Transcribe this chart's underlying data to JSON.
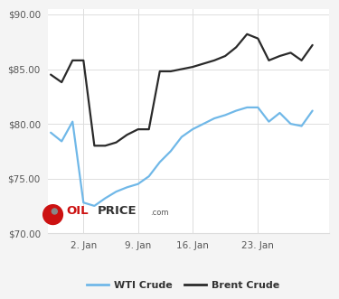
{
  "wti_x": [
    0,
    1,
    2,
    3,
    4,
    5,
    6,
    7,
    8,
    9,
    10,
    11,
    12,
    13,
    14,
    15,
    16,
    17,
    18,
    19,
    20,
    21,
    22,
    23,
    24
  ],
  "wti_y": [
    79.2,
    78.4,
    80.2,
    72.8,
    72.5,
    73.2,
    73.8,
    74.2,
    74.5,
    75.2,
    76.5,
    77.5,
    78.8,
    79.5,
    80.0,
    80.5,
    80.8,
    81.2,
    81.5,
    81.5,
    80.2,
    81.0,
    80.0,
    79.8,
    81.2
  ],
  "brent_x": [
    0,
    1,
    2,
    3,
    4,
    5,
    6,
    7,
    8,
    9,
    10,
    11,
    12,
    13,
    14,
    15,
    16,
    17,
    18,
    19,
    20,
    21,
    22,
    23,
    24
  ],
  "brent_y": [
    84.5,
    83.8,
    85.8,
    85.8,
    78.0,
    78.0,
    78.3,
    79.0,
    79.5,
    79.5,
    84.8,
    84.8,
    85.0,
    85.2,
    85.5,
    85.8,
    86.2,
    87.0,
    88.2,
    87.8,
    85.8,
    86.2,
    86.5,
    85.8,
    87.2
  ],
  "wti_color": "#70b8e8",
  "brent_color": "#2a2a2a",
  "bg_color": "#f4f4f4",
  "plot_bg_color": "#ffffff",
  "grid_color": "#dddddd",
  "ylim": [
    70.0,
    90.5
  ],
  "yticks": [
    70.0,
    75.0,
    80.0,
    85.0,
    90.0
  ],
  "xlim": [
    -0.3,
    25.5
  ],
  "xtick_positions": [
    3,
    8,
    13,
    19
  ],
  "xtick_labels": [
    "2. Jan",
    "9. Jan",
    "16. Jan",
    "23. Jan"
  ],
  "legend_wti": "WTI Crude",
  "legend_brent": "Brent Crude"
}
